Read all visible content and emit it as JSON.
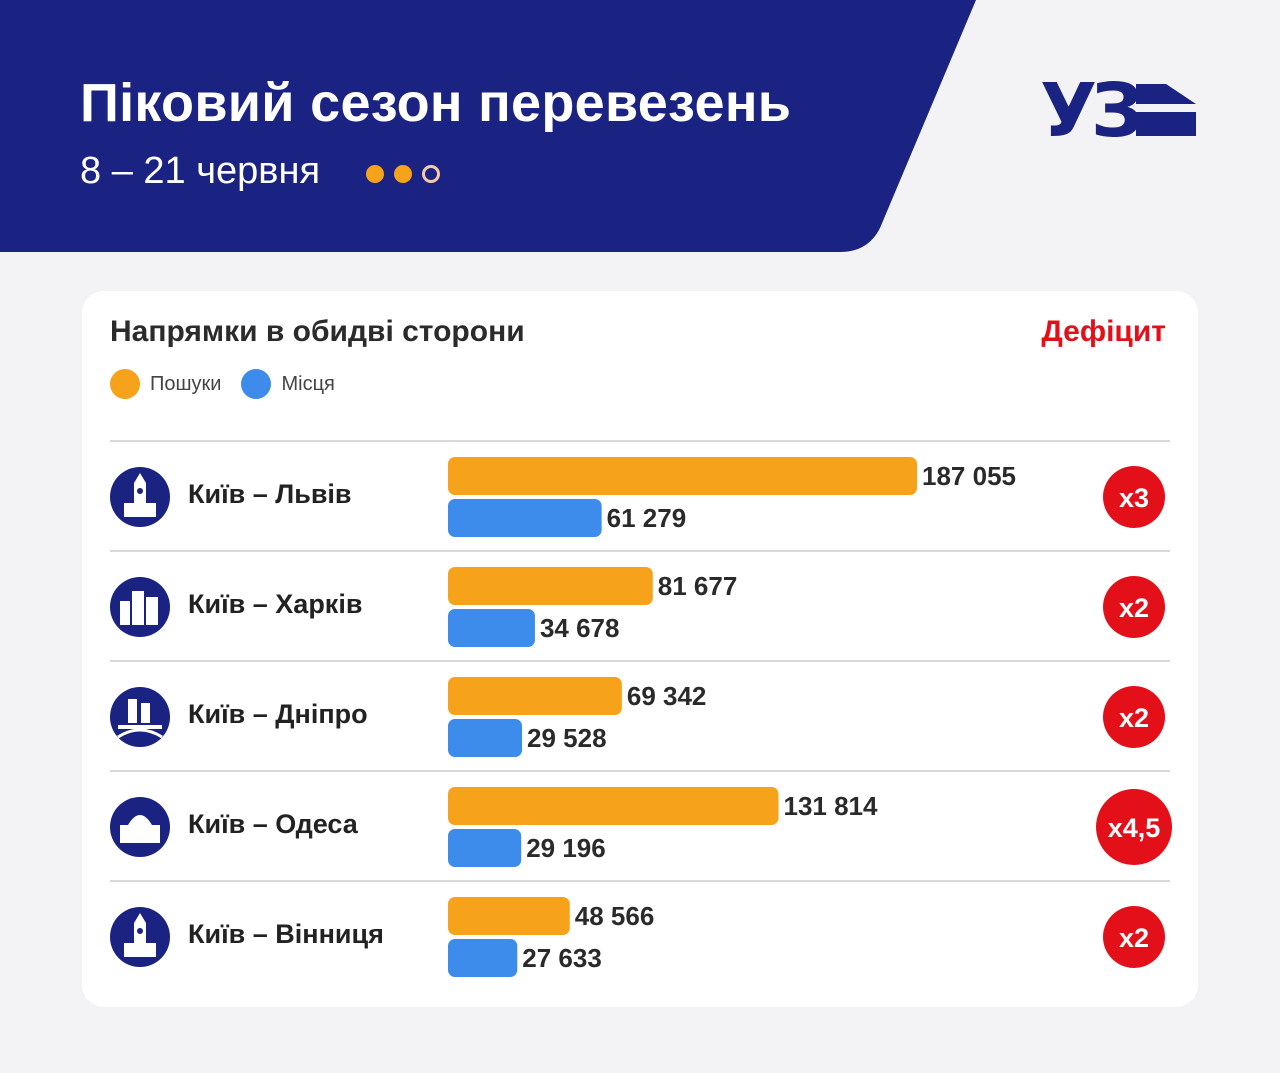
{
  "header": {
    "title": "Піковий сезон перевезень",
    "subtitle": "8 – 21 червня",
    "logo_text": "УЗ"
  },
  "colors": {
    "navy": "#1a2282",
    "orange": "#f7a21b",
    "blue": "#3d8bea",
    "red": "#e3101a"
  },
  "chart_data": {
    "type": "bar",
    "title": "Напрямки в обидві сторони",
    "deficit_header": "Дефіцит",
    "categories": [
      "Київ – Львів",
      "Київ – Харків",
      "Київ – Дніпро",
      "Київ – Одеса",
      "Київ – Вінниця"
    ],
    "icons": [
      "lviv-town-hall-icon",
      "kharkiv-buildings-icon",
      "dnipro-bridge-icon",
      "odesa-opera-icon",
      "vinnytsia-tower-icon"
    ],
    "series": [
      {
        "name": "Пошуки",
        "color": "#f7a21b",
        "values": [
          187055,
          81677,
          69342,
          131814,
          48566
        ]
      },
      {
        "name": "Місця",
        "color": "#3d8bea",
        "values": [
          61279,
          34678,
          29528,
          29196,
          27633
        ]
      }
    ],
    "value_labels": [
      [
        "187 055",
        "81 677",
        "69 342",
        "131 814",
        "48 566"
      ],
      [
        "61 279",
        "34 678",
        "29 528",
        "29 196",
        "27 633"
      ]
    ],
    "deficit": [
      "x3",
      "x2",
      "x2",
      "x4,5",
      "x2"
    ],
    "orientation": "horizontal",
    "xlim": [
      0,
      187055
    ],
    "legend": "top-left",
    "grid": false
  }
}
